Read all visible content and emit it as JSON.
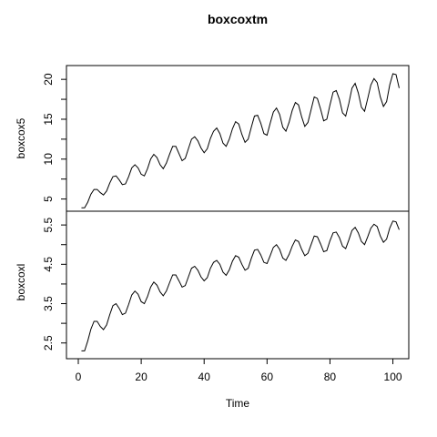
{
  "chart_data": {
    "type": "line",
    "title": "boxcoxtm",
    "xlabel": "Time",
    "xlim": [
      0,
      101
    ],
    "x_ticks": [
      "0",
      "20",
      "40",
      "60",
      "80",
      "100"
    ],
    "grid": false,
    "panels": [
      {
        "ylabel": "boxcox5",
        "ylim": [
          4.2,
          21.0
        ],
        "y_ticks": [
          "5",
          "10",
          "15",
          "20"
        ],
        "series": [
          {
            "x_start": 1,
            "values": [
              3.9,
              3.9,
              4.6,
              5.6,
              6.2,
              6.2,
              5.8,
              5.5,
              6.0,
              7.0,
              7.8,
              7.9,
              7.4,
              6.8,
              6.9,
              7.8,
              8.9,
              9.3,
              8.9,
              8.1,
              7.9,
              8.8,
              10.0,
              10.6,
              10.2,
              9.3,
              8.8,
              9.5,
              10.6,
              11.6,
              11.6,
              10.7,
              9.8,
              10.1,
              11.3,
              12.5,
              12.8,
              12.3,
              11.4,
              10.8,
              11.3,
              12.6,
              13.5,
              13.9,
              13.2,
              12.0,
              11.6,
              12.5,
              13.8,
              14.7,
              14.4,
              13.1,
              12.1,
              12.5,
              14.0,
              15.4,
              15.5,
              14.5,
              13.2,
              13.0,
              14.5,
              15.9,
              16.4,
              15.6,
              14.0,
              13.5,
              14.6,
              16.1,
              17.1,
              16.8,
              15.3,
              14.1,
              14.6,
              16.2,
              17.8,
              17.6,
              16.3,
              14.8,
              15.0,
              16.8,
              18.4,
              18.6,
              17.5,
              15.8,
              15.4,
              17.0,
              18.9,
              19.5,
              18.3,
              16.5,
              16.0,
              17.6,
              19.3,
              20.1,
              19.6,
              17.8,
              16.6,
              17.2,
              19.3,
              20.7,
              20.6,
              18.9
            ]
          }
        ]
      },
      {
        "ylabel": "boxcoxl",
        "ylim": [
          2.25,
          5.7
        ],
        "y_ticks": [
          "2.5",
          "3.5",
          "4.5",
          "5.5"
        ],
        "series": [
          {
            "x_start": 1,
            "values": [
              2.3,
              2.3,
              2.55,
              2.85,
              3.05,
              3.05,
              2.92,
              2.84,
              2.96,
              3.22,
              3.45,
              3.5,
              3.38,
              3.22,
              3.26,
              3.48,
              3.72,
              3.82,
              3.74,
              3.55,
              3.5,
              3.68,
              3.92,
              4.05,
              3.97,
              3.8,
              3.7,
              3.82,
              4.03,
              4.23,
              4.23,
              4.08,
              3.92,
              3.96,
              4.18,
              4.4,
              4.45,
              4.35,
              4.18,
              4.08,
              4.16,
              4.4,
              4.55,
              4.6,
              4.5,
              4.3,
              4.22,
              4.36,
              4.58,
              4.72,
              4.68,
              4.5,
              4.35,
              4.4,
              4.65,
              4.86,
              4.88,
              4.74,
              4.55,
              4.52,
              4.72,
              4.93,
              5.0,
              4.88,
              4.66,
              4.6,
              4.75,
              4.96,
              5.12,
              5.08,
              4.88,
              4.72,
              4.78,
              5.0,
              5.22,
              5.2,
              5.02,
              4.82,
              4.85,
              5.1,
              5.3,
              5.32,
              5.18,
              4.96,
              4.9,
              5.12,
              5.36,
              5.44,
              5.3,
              5.08,
              5.0,
              5.2,
              5.42,
              5.52,
              5.46,
              5.22,
              5.06,
              5.14,
              5.42,
              5.6,
              5.58,
              5.38
            ]
          }
        ]
      }
    ]
  }
}
